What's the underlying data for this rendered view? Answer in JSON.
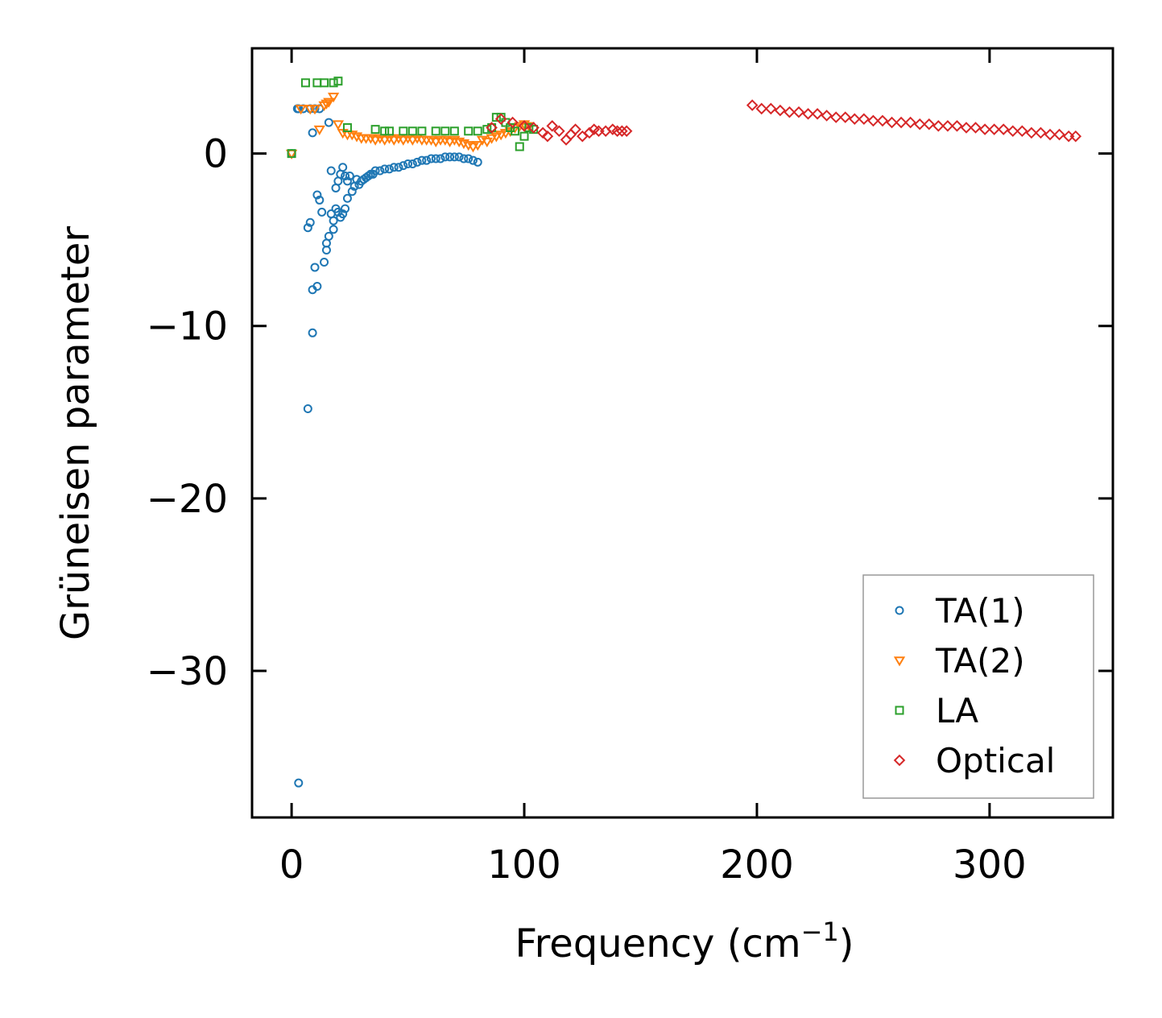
{
  "chart_data": {
    "type": "scatter",
    "title": "",
    "xlabel": "Frequency (cm",
    "xlabel_sup": "−1",
    "xlabel_end": ")",
    "ylabel": "Grüneisen parameter",
    "xlim": [
      -17,
      353
    ],
    "ylim": [
      -38.5,
      6.1
    ],
    "xticks": [
      0,
      100,
      200,
      300
    ],
    "xtick_labels": [
      "0",
      "100",
      "200",
      "300"
    ],
    "yticks": [
      0,
      -10,
      -20,
      -30
    ],
    "ytick_labels": [
      "0",
      "−10",
      "−20",
      "−30"
    ],
    "legend_position": "lower-right",
    "series": [
      {
        "name": "TA(1)",
        "marker": "circle",
        "color": "#1f77b4",
        "x": [
          0,
          3,
          3,
          5,
          7,
          8,
          9,
          10,
          11,
          12,
          2.5,
          7,
          8,
          9,
          9,
          10,
          11,
          12,
          13,
          14,
          15,
          15,
          16,
          16,
          17,
          17,
          18,
          18,
          19,
          19,
          20,
          20,
          21,
          21,
          22,
          22,
          23,
          23,
          24,
          24,
          25,
          26,
          27,
          28,
          29,
          30,
          31,
          32,
          33,
          34,
          35,
          36,
          38,
          40,
          42,
          44,
          46,
          48,
          50,
          52,
          54,
          56,
          58,
          60,
          62,
          64,
          66,
          68,
          70,
          72,
          74,
          76,
          78,
          80
        ],
        "y": [
          0,
          2.6,
          -36.5,
          2.6,
          -14.8,
          2.6,
          -10.4,
          2.6,
          -7.7,
          2.6,
          2.6,
          -4.3,
          -4.0,
          -7.9,
          1.2,
          -6.6,
          -2.4,
          -2.7,
          -3.4,
          -6.3,
          -5.6,
          -5.2,
          1.8,
          -4.8,
          -3.5,
          -1.0,
          -3.9,
          -4.4,
          -3.2,
          -2.0,
          -1.6,
          -3.4,
          -1.2,
          -3.7,
          -0.8,
          -3.5,
          -1.3,
          -3.2,
          -2.6,
          -1.6,
          -1.3,
          -2.2,
          -1.9,
          -1.5,
          -1.8,
          -1.6,
          -1.5,
          -1.4,
          -1.3,
          -1.2,
          -1.2,
          -1.0,
          -1.0,
          -0.9,
          -0.9,
          -0.8,
          -0.8,
          -0.7,
          -0.6,
          -0.6,
          -0.5,
          -0.4,
          -0.4,
          -0.3,
          -0.3,
          -0.3,
          -0.2,
          -0.2,
          -0.2,
          -0.2,
          -0.3,
          -0.3,
          -0.4,
          -0.5
        ]
      },
      {
        "name": "TA(2)",
        "marker": "triangle-down",
        "color": "#ff7f0e",
        "x": [
          0,
          4,
          8,
          10,
          12,
          14,
          15,
          16,
          18,
          20,
          22,
          24,
          26,
          28,
          30,
          32,
          34,
          36,
          38,
          40,
          42,
          44,
          46,
          48,
          50,
          52,
          54,
          56,
          58,
          60,
          62,
          64,
          66,
          68,
          70,
          72,
          74,
          76,
          78,
          80,
          82,
          84,
          86,
          88,
          90,
          92,
          94,
          96,
          98,
          100,
          102
        ],
        "y": [
          0,
          2.6,
          2.6,
          2.6,
          1.4,
          2.8,
          2.9,
          3.0,
          3.3,
          1.7,
          1.2,
          1.1,
          1.1,
          1.0,
          0.9,
          0.9,
          0.9,
          0.8,
          0.9,
          0.8,
          0.9,
          0.8,
          0.9,
          0.8,
          0.9,
          0.8,
          0.9,
          0.8,
          0.8,
          0.8,
          0.7,
          0.8,
          0.8,
          0.7,
          0.8,
          0.7,
          0.6,
          0.5,
          0.4,
          0.5,
          0.8,
          0.7,
          0.9,
          1.0,
          1.1,
          1.2,
          1.3,
          1.5,
          1.6,
          1.7,
          1.6
        ]
      },
      {
        "name": "LA",
        "marker": "square",
        "color": "#2ca02c",
        "x": [
          0,
          6,
          11,
          14,
          18,
          20,
          24,
          36,
          40,
          42,
          48,
          52,
          56,
          62,
          66,
          70,
          76,
          80,
          84,
          86,
          88,
          90,
          92,
          94,
          96,
          98,
          100,
          102,
          104
        ],
        "y": [
          0,
          4.1,
          4.1,
          4.1,
          4.1,
          4.2,
          1.5,
          1.4,
          1.3,
          1.3,
          1.3,
          1.3,
          1.3,
          1.3,
          1.3,
          1.3,
          1.3,
          1.3,
          1.4,
          1.5,
          2.1,
          2.1,
          1.8,
          1.5,
          1.3,
          0.4,
          1.0,
          1.5,
          1.4
        ]
      },
      {
        "name": "Optical",
        "marker": "diamond",
        "color": "#d62728",
        "x": [
          86,
          90,
          95,
          100,
          104,
          108,
          110,
          112,
          115,
          118,
          120,
          122,
          125,
          128,
          130,
          132,
          135,
          138,
          140,
          142,
          144,
          198,
          202,
          206,
          210,
          214,
          218,
          222,
          226,
          230,
          234,
          238,
          242,
          246,
          250,
          254,
          258,
          262,
          266,
          270,
          274,
          278,
          282,
          286,
          290,
          294,
          298,
          302,
          306,
          310,
          314,
          318,
          322,
          326,
          330,
          334,
          337
        ],
        "y": [
          1.5,
          2.0,
          1.8,
          1.6,
          1.5,
          1.2,
          1.0,
          1.6,
          1.3,
          0.8,
          1.1,
          1.4,
          1.0,
          1.2,
          1.4,
          1.3,
          1.3,
          1.4,
          1.3,
          1.3,
          1.3,
          2.8,
          2.6,
          2.6,
          2.5,
          2.4,
          2.4,
          2.3,
          2.3,
          2.2,
          2.1,
          2.1,
          2.0,
          2.0,
          1.9,
          1.9,
          1.8,
          1.8,
          1.8,
          1.7,
          1.7,
          1.6,
          1.6,
          1.6,
          1.5,
          1.5,
          1.4,
          1.4,
          1.4,
          1.3,
          1.3,
          1.2,
          1.2,
          1.1,
          1.1,
          1.0,
          1.0
        ]
      }
    ]
  }
}
